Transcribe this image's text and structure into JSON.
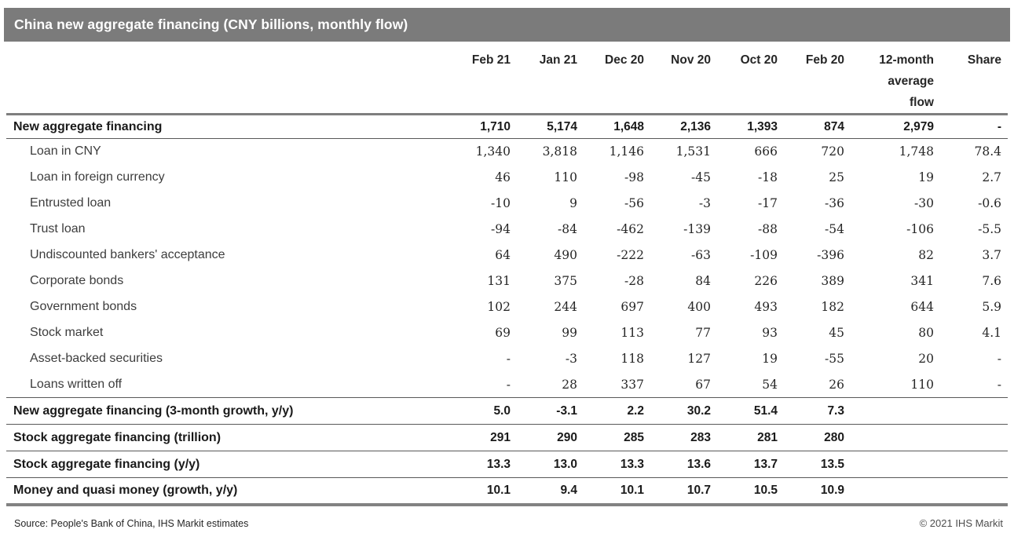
{
  "chart_data": {
    "type": "table",
    "title": "China new aggregate financing (CNY billions, monthly flow)",
    "columns": [
      "Feb 21",
      "Jan 21",
      "Dec 20",
      "Nov 20",
      "Oct 20",
      "Feb 20",
      "12-month\naverage\nflow",
      "Share"
    ],
    "rows": [
      {
        "label": "New aggregate financing",
        "bold": true,
        "values": [
          "1,710",
          "5,174",
          "1,648",
          "2,136",
          "1,393",
          "874",
          "2,979",
          "-"
        ]
      },
      {
        "label": "Loan in CNY",
        "bold": false,
        "values": [
          "1,340",
          "3,818",
          "1,146",
          "1,531",
          "666",
          "720",
          "1,748",
          "78.4"
        ]
      },
      {
        "label": "Loan in foreign currency",
        "bold": false,
        "values": [
          "46",
          "110",
          "-98",
          "-45",
          "-18",
          "25",
          "19",
          "2.7"
        ]
      },
      {
        "label": "Entrusted loan",
        "bold": false,
        "values": [
          "-10",
          "9",
          "-56",
          "-3",
          "-17",
          "-36",
          "-30",
          "-0.6"
        ]
      },
      {
        "label": "Trust loan",
        "bold": false,
        "values": [
          "-94",
          "-84",
          "-462",
          "-139",
          "-88",
          "-54",
          "-106",
          "-5.5"
        ]
      },
      {
        "label": "Undiscounted bankers' acceptance",
        "bold": false,
        "values": [
          "64",
          "490",
          "-222",
          "-63",
          "-109",
          "-396",
          "82",
          "3.7"
        ]
      },
      {
        "label": "Corporate bonds",
        "bold": false,
        "values": [
          "131",
          "375",
          "-28",
          "84",
          "226",
          "389",
          "341",
          "7.6"
        ]
      },
      {
        "label": "Government bonds",
        "bold": false,
        "values": [
          "102",
          "244",
          "697",
          "400",
          "493",
          "182",
          "644",
          "5.9"
        ]
      },
      {
        "label": "Stock market",
        "bold": false,
        "values": [
          "69",
          "99",
          "113",
          "77",
          "93",
          "45",
          "80",
          "4.1"
        ]
      },
      {
        "label": "Asset-backed securities",
        "bold": false,
        "values": [
          "-",
          "-3",
          "118",
          "127",
          "19",
          "-55",
          "20",
          "-"
        ]
      },
      {
        "label": "Loans written off",
        "bold": false,
        "values": [
          "-",
          "28",
          "337",
          "67",
          "54",
          "26",
          "110",
          "-"
        ]
      },
      {
        "label": "New aggregate financing (3-month growth, y/y)",
        "bold": true,
        "values": [
          "5.0",
          "-3.1",
          "2.2",
          "30.2",
          "51.4",
          "7.3",
          "",
          ""
        ]
      },
      {
        "label": "Stock aggregate financing (trillion)",
        "bold": true,
        "values": [
          "291",
          "290",
          "285",
          "283",
          "281",
          "280",
          "",
          ""
        ]
      },
      {
        "label": "Stock aggregate financing (y/y)",
        "bold": true,
        "values": [
          "13.3",
          "13.0",
          "13.3",
          "13.6",
          "13.7",
          "13.5",
          "",
          ""
        ]
      },
      {
        "label": "Money and quasi money (growth, y/y)",
        "bold": true,
        "values": [
          "10.1",
          "9.4",
          "10.1",
          "10.7",
          "10.5",
          "10.9",
          "",
          ""
        ]
      }
    ],
    "layout": {
      "gridlines": "horizontal-only",
      "value_alignment": "right"
    }
  },
  "footer": {
    "source": "Source: People's Bank of China, IHS Markit estimates",
    "copyright": "© 2021 IHS Markit"
  },
  "colors": {
    "title_bar_bg": "#7b7b7b",
    "title_text": "#ffffff",
    "thick_rule": "#828282",
    "thin_rule": "#595959",
    "bold_text": "#1a1a1a",
    "sub_label_text": "#3d3d3d"
  }
}
